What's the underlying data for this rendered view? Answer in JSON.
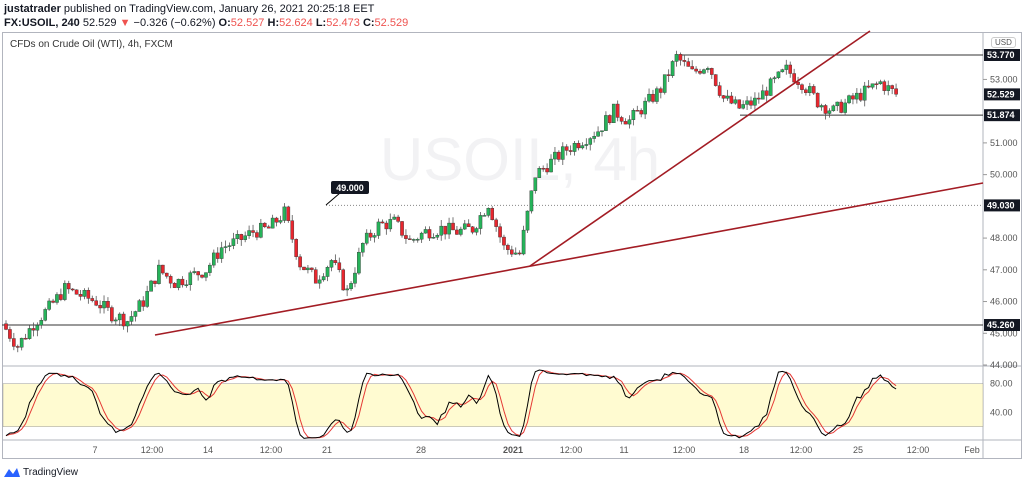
{
  "header": {
    "author": "justatrader",
    "published_text": "published on TradingView.com, January 26, 2021 20:25:18 EET",
    "symbol": "FX:USOIL, 240",
    "last": "52.529",
    "change_icon": "triangle-down-icon",
    "change": "−0.326 (−0.62%)",
    "o_label": "O:",
    "o": "52.527",
    "h_label": "H:",
    "h": "52.624",
    "l_label": "L:",
    "l": "52.473",
    "c_label": "C:",
    "c": "52.529"
  },
  "legend": "CFDs on Crude Oil (WTI), 4h, FXCM",
  "watermark": "USOIL, 4h",
  "currency": "USD",
  "callout": "49.000",
  "footer": {
    "brand": "TradingView"
  },
  "colors": {
    "up": "#26b35a",
    "down": "#e8262e",
    "trendline": "#a31c24",
    "stoch_k": "#000000",
    "stoch_d": "#e53935",
    "stoch_band": "#fffbd1"
  },
  "chart_data": {
    "type": "candlestick",
    "price_ticks": [
      "53.000",
      "51.000",
      "50.000",
      "48.000",
      "47.000",
      "46.000",
      "45.000",
      "44.000"
    ],
    "price_levels": [
      {
        "label": "53.770",
        "value": 53.77
      },
      {
        "label": "52.529",
        "value": 52.529
      },
      {
        "label": "51.874",
        "value": 51.874
      },
      {
        "label": "49.030",
        "value": 49.03
      },
      {
        "label": "45.260",
        "value": 45.26
      }
    ],
    "time_ticks": [
      "7",
      "12:00",
      "14",
      "12:00",
      "21",
      "28",
      "2021",
      "12:00",
      "11",
      "12:00",
      "18",
      "12:00",
      "25",
      "12:00",
      "Feb"
    ],
    "closes": [
      45.3,
      44.6,
      45.3,
      45.8,
      46.4,
      46.2,
      46.0,
      45.6,
      45.4,
      46.0,
      47.0,
      46.6,
      46.8,
      47.0,
      47.7,
      47.9,
      48.2,
      48.3,
      48.8,
      47.2,
      46.7,
      47.3,
      46.3,
      47.8,
      48.4,
      48.5,
      47.9,
      48.2,
      48.3,
      48.2,
      48.3,
      49.1,
      47.7,
      47.5,
      50.0,
      50.4,
      50.8,
      51.1,
      51.4,
      52.0,
      51.7,
      52.2,
      52.7,
      53.7,
      53.2,
      53.5,
      52.4,
      52.1,
      52.3,
      52.8,
      53.3,
      52.9,
      52.3,
      52.0,
      52.3,
      52.6,
      52.9,
      52.53
    ],
    "stochastic_ticks": [
      "80.00",
      "40.00"
    ]
  }
}
